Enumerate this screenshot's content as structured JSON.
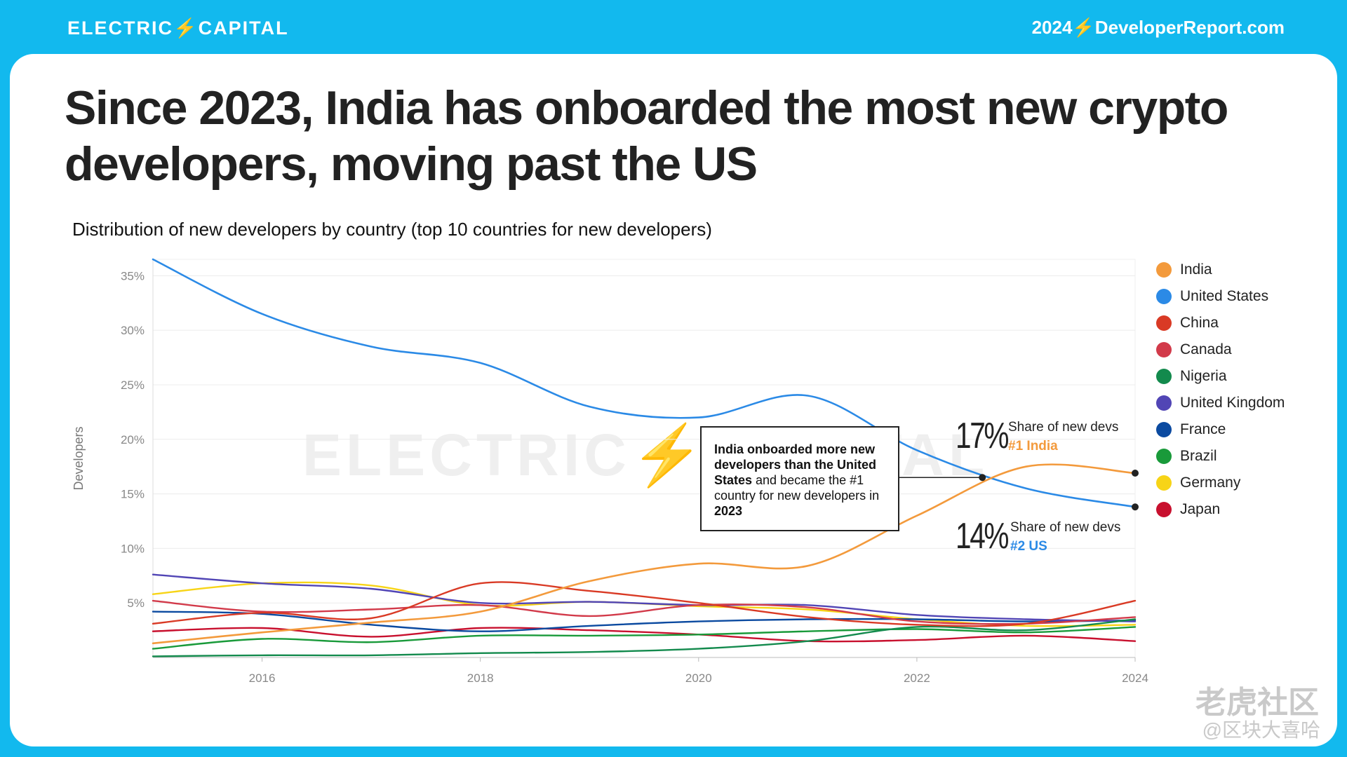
{
  "header": {
    "brand": "ELECTRIC⚡CAPITAL",
    "site": "2024⚡DeveloperReport.com"
  },
  "title": "Since 2023, India has onboarded the most new crypto developers, moving past the US",
  "subtitle": "Distribution of new developers by country (top 10 countries for new developers)",
  "watermark_chart": "ELECTRIC⚡CAPITAL",
  "callout": {
    "part1": "India onboarded more new developers than the United States",
    "part2": " and became the #1 country for new developers in ",
    "part3": "2023"
  },
  "annotations": {
    "india": {
      "big": "17%",
      "label": "Share of new devs",
      "rank": "#1 India"
    },
    "us": {
      "big": "14%",
      "label": "Share of new devs",
      "rank": "#2 US"
    }
  },
  "watermark": {
    "line1": "老虎社区",
    "line2": "@区块大喜哈"
  },
  "chart_data": {
    "type": "line",
    "ylabel": "Developers",
    "xlabel": "",
    "xlim": [
      2015,
      2024
    ],
    "ylim": [
      0,
      36.5
    ],
    "x_ticks": [
      2016,
      2018,
      2020,
      2022,
      2024
    ],
    "x_tick_labels": [
      "2016",
      "2018",
      "2020",
      "2022",
      "2024"
    ],
    "y_ticks": [
      5,
      10,
      15,
      20,
      25,
      30,
      35
    ],
    "y_tick_labels": [
      "5%",
      "10%",
      "15%",
      "20%",
      "25%",
      "30%",
      "35%"
    ],
    "grid": true,
    "legend_position": "right",
    "x": [
      2015,
      2016,
      2017,
      2018,
      2019,
      2020,
      2021,
      2022,
      2023,
      2024
    ],
    "series": [
      {
        "name": "India",
        "color": "#f39a3c",
        "values": [
          1.3,
          2.3,
          3.2,
          4.2,
          7.0,
          8.6,
          8.4,
          13.0,
          17.5,
          16.9
        ]
      },
      {
        "name": "United States",
        "color": "#2b8ae6",
        "values": [
          36.5,
          31.5,
          28.5,
          27.0,
          23.0,
          22.0,
          24.0,
          19.0,
          15.5,
          13.8
        ]
      },
      {
        "name": "China",
        "color": "#d93a25",
        "values": [
          3.1,
          4.1,
          3.6,
          6.8,
          6.1,
          5.0,
          3.7,
          3.0,
          3.1,
          5.2
        ]
      },
      {
        "name": "Canada",
        "color": "#d23a4a",
        "values": [
          5.2,
          4.2,
          4.4,
          4.8,
          3.8,
          4.8,
          4.6,
          3.3,
          3.1,
          3.7
        ]
      },
      {
        "name": "Nigeria",
        "color": "#138a4d",
        "values": [
          0.1,
          0.2,
          0.2,
          0.4,
          0.5,
          0.8,
          1.5,
          2.8,
          2.5,
          3.5
        ]
      },
      {
        "name": "United Kingdom",
        "color": "#5145b5",
        "values": [
          7.6,
          6.8,
          6.3,
          5.0,
          5.1,
          4.8,
          4.8,
          3.9,
          3.5,
          3.3
        ]
      },
      {
        "name": "France",
        "color": "#0b4aa0",
        "values": [
          4.2,
          4.0,
          3.0,
          2.4,
          2.9,
          3.3,
          3.5,
          3.5,
          3.3,
          3.4
        ]
      },
      {
        "name": "Brazil",
        "color": "#199a3a",
        "values": [
          0.8,
          1.7,
          1.4,
          2.0,
          2.0,
          2.1,
          2.4,
          2.6,
          2.3,
          2.8
        ]
      },
      {
        "name": "Germany",
        "color": "#f7d417",
        "values": [
          5.8,
          6.8,
          6.6,
          4.8,
          5.1,
          4.7,
          4.4,
          3.5,
          2.9,
          3.0
        ]
      },
      {
        "name": "Japan",
        "color": "#c8102e",
        "values": [
          2.4,
          2.7,
          1.9,
          2.7,
          2.5,
          2.1,
          1.5,
          1.6,
          2.0,
          1.5
        ]
      }
    ]
  }
}
